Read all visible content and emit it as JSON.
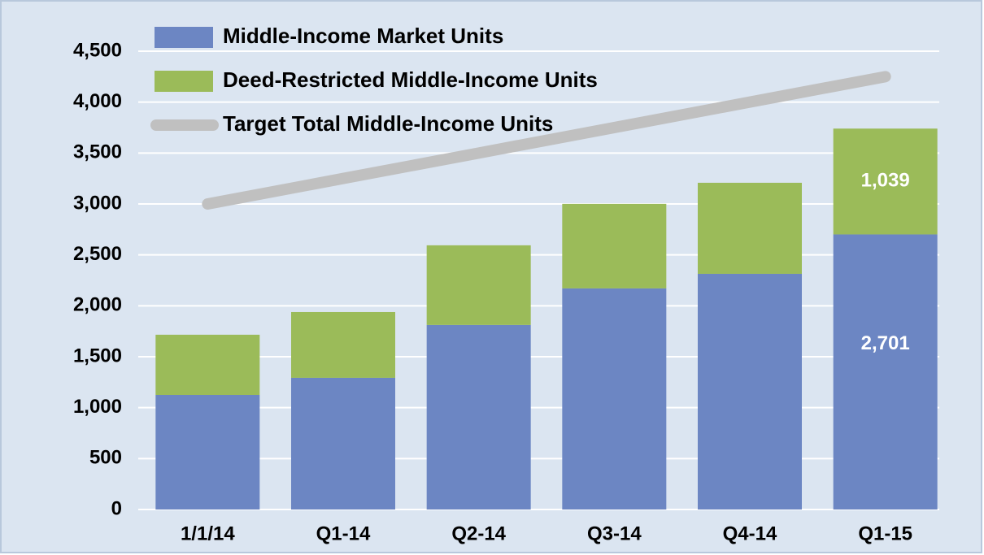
{
  "chart_data": {
    "type": "bar",
    "stacked": true,
    "categories": [
      "1/1/14",
      "Q1-14",
      "Q2-14",
      "Q3-14",
      "Q4-14",
      "Q1-15"
    ],
    "series": [
      {
        "name": "Middle-Income Market Units",
        "color": "#6c86c3",
        "values": [
          1125,
          1293,
          1812,
          2171,
          2314,
          2701
        ],
        "value_labels": [
          null,
          null,
          null,
          null,
          null,
          "2,701"
        ]
      },
      {
        "name": "Deed-Restricted Middle-Income Units",
        "color": "#9bbb59",
        "values": [
          591,
          646,
          782,
          830,
          894,
          1039
        ],
        "value_labels": [
          null,
          null,
          null,
          null,
          null,
          "1,039"
        ]
      },
      {
        "name": "Target Total Middle-Income Units",
        "color": "#c0c0c0",
        "type": "line",
        "values": [
          3000,
          3250,
          3500,
          3750,
          4000,
          4250
        ]
      }
    ],
    "ylim": [
      0,
      4500
    ],
    "yticks": [
      0,
      500,
      {
        "value": 1000,
        "label": "1,000"
      },
      {
        "value": 1500,
        "label": "1,500"
      },
      {
        "value": 2000,
        "label": "2,000"
      },
      {
        "value": 2500,
        "label": "2,500"
      },
      {
        "value": 3000,
        "label": "3,000"
      },
      {
        "value": 3500,
        "label": "3,500"
      },
      {
        "value": 4000,
        "label": "4,000"
      },
      {
        "value": 4500,
        "label": "4,500"
      }
    ],
    "grid": true,
    "legend": "top-left"
  }
}
